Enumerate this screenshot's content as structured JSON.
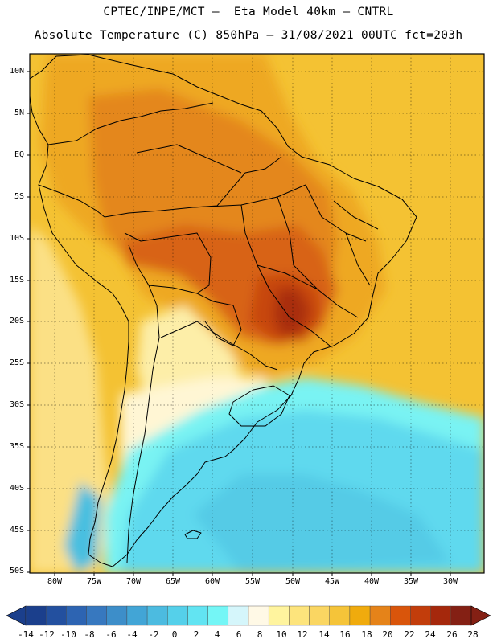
{
  "title": {
    "line1": "CPTEC/INPE/MCT –  Eta Model 40km – CNTRL",
    "line2": "Absolute Temperature (C) 850hPa – 31/08/2021 00UTC fct=203h"
  },
  "map": {
    "lat_labels": [
      "10N",
      "5N",
      "EQ",
      "5S",
      "10S",
      "15S",
      "20S",
      "25S",
      "30S",
      "35S",
      "40S",
      "45S",
      "50S"
    ],
    "lon_labels": [
      "80W",
      "75W",
      "70W",
      "65W",
      "60W",
      "55W",
      "50W",
      "45W",
      "40W",
      "35W",
      "30W"
    ]
  },
  "colorbar": {
    "labels": [
      "-14",
      "-12",
      "-10",
      "-8",
      "-6",
      "-4",
      "-2",
      "0",
      "2",
      "4",
      "6",
      "8",
      "10",
      "12",
      "14",
      "16",
      "18",
      "20",
      "22",
      "24",
      "26",
      "28"
    ],
    "colors": [
      "#1b3f8c",
      "#23509f",
      "#2d64b2",
      "#3778bf",
      "#3d8ec9",
      "#42a5d6",
      "#4cbbe0",
      "#55d0ea",
      "#62e4f2",
      "#74f6f6",
      "#d5f6fb",
      "#fff9e6",
      "#fff49e",
      "#fde47c",
      "#fad662",
      "#f5c439",
      "#f0ab0d",
      "#e58319",
      "#d9550b",
      "#c23d0b",
      "#a5280c",
      "#842014"
    ]
  }
}
